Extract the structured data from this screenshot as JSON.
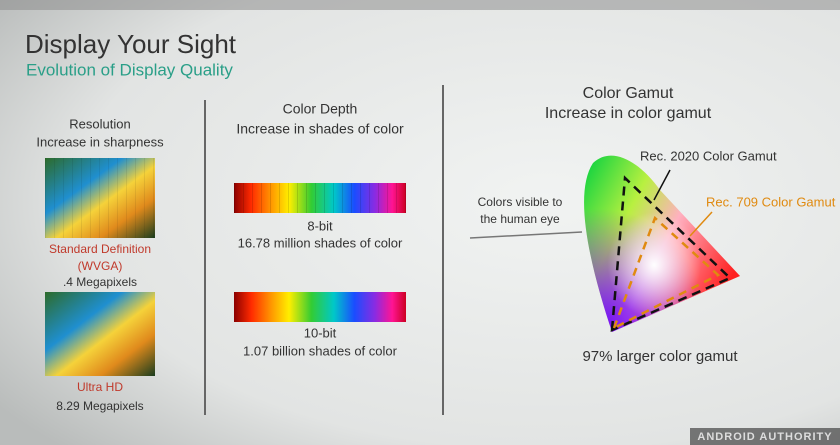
{
  "header": {
    "title": "Display Your Sight",
    "subtitle": "Evolution of Display Quality"
  },
  "resolution": {
    "heading": "Resolution",
    "subheading": "Increase in sharpness",
    "items": [
      {
        "lines": [
          "Standard Definition",
          "(WVGA)",
          ".4 Megapixels"
        ]
      },
      {
        "lines": [
          "Ultra HD",
          "8.29 Megapixels"
        ]
      }
    ]
  },
  "color_depth": {
    "heading": "Color Depth",
    "subheading": "Increase in shades of color",
    "items": [
      {
        "bits": "8-bit",
        "description": "16.78 million shades of color"
      },
      {
        "bits": "10-bit",
        "description": "1.07 billion shades of color"
      }
    ]
  },
  "color_gamut": {
    "heading": "Color Gamut",
    "subheading": "Increase in color gamut",
    "rec2020_label": "Rec. 2020 Color Gamut",
    "rec709_label": "Rec. 709 Color Gamut",
    "eye_label": [
      "Colors visible to",
      "the human eye"
    ],
    "caption": "97% larger color gamut"
  },
  "watermark": "ANDROID AUTHORITY"
}
